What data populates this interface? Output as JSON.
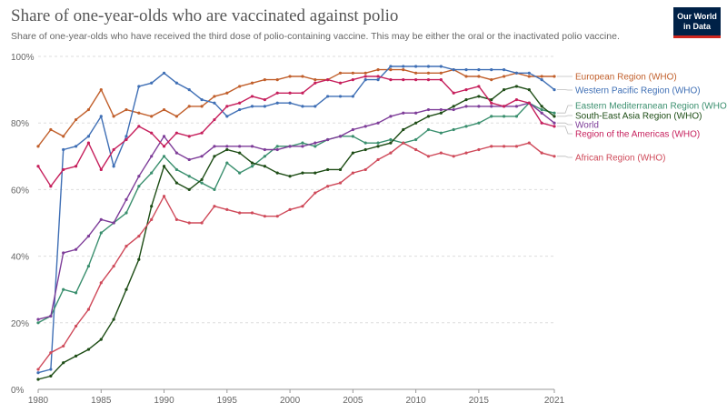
{
  "header": {
    "title": "Share of one-year-olds who are vaccinated against polio",
    "subtitle": "Share of one-year-olds who have received the third dose of polio-containing vaccine. This may be either the oral or the inactivated polio vaccine.",
    "logo_line1": "Our World",
    "logo_line2": "in Data"
  },
  "colors": {
    "grid": "#dddddd",
    "axis": "#666666",
    "logo_bg": "#002147",
    "logo_accent": "#ce261e"
  },
  "chart_data": {
    "type": "line",
    "x": [
      1980,
      1981,
      1982,
      1983,
      1984,
      1985,
      1986,
      1987,
      1988,
      1989,
      1990,
      1991,
      1992,
      1993,
      1994,
      1995,
      1996,
      1997,
      1998,
      1999,
      2000,
      2001,
      2002,
      2003,
      2004,
      2005,
      2006,
      2007,
      2008,
      2009,
      2010,
      2011,
      2012,
      2013,
      2014,
      2015,
      2016,
      2017,
      2018,
      2019,
      2020,
      2021
    ],
    "xlim": [
      1980,
      2021
    ],
    "ylim": [
      0,
      100
    ],
    "xticks": [
      1980,
      1985,
      1990,
      1995,
      2000,
      2005,
      2010,
      2015,
      2021
    ],
    "yticks": [
      0,
      20,
      40,
      60,
      80,
      100
    ],
    "ytick_labels": [
      "0%",
      "20%",
      "40%",
      "60%",
      "80%",
      "100%"
    ],
    "grid": true,
    "legend_position": "right",
    "series": [
      {
        "name": "European Region (WHO)",
        "color": "#c15f2b",
        "values": [
          73,
          78,
          76,
          81,
          84,
          90,
          82,
          84,
          83,
          82,
          84,
          82,
          85,
          85,
          88,
          89,
          91,
          92,
          93,
          93,
          94,
          94,
          93,
          93,
          95,
          95,
          95,
          96,
          96,
          96,
          95,
          95,
          95,
          96,
          94,
          94,
          93,
          94,
          95,
          94,
          94,
          94
        ]
      },
      {
        "name": "Western Pacific Region (WHO)",
        "color": "#3f6fb5",
        "values": [
          5,
          6,
          72,
          73,
          76,
          82,
          67,
          76,
          91,
          92,
          95,
          92,
          90,
          87,
          86,
          82,
          84,
          85,
          85,
          86,
          86,
          85,
          85,
          88,
          88,
          88,
          93,
          93,
          97,
          97,
          97,
          97,
          97,
          96,
          96,
          96,
          96,
          96,
          95,
          95,
          93,
          90
        ]
      },
      {
        "name": "Eastern Mediterranean Region (WHO)",
        "color": "#3a8f6e",
        "values": [
          20,
          22,
          30,
          29,
          37,
          47,
          50,
          53,
          61,
          65,
          70,
          66,
          64,
          62,
          60,
          68,
          65,
          67,
          70,
          73,
          73,
          74,
          73,
          75,
          76,
          76,
          74,
          74,
          75,
          74,
          75,
          78,
          77,
          78,
          79,
          80,
          82,
          82,
          82,
          86,
          84,
          83
        ]
      },
      {
        "name": "South-East Asia Region (WHO)",
        "color": "#1e4d16",
        "values": [
          3,
          4,
          8,
          10,
          12,
          15,
          21,
          30,
          39,
          55,
          67,
          62,
          60,
          63,
          70,
          72,
          71,
          68,
          67,
          65,
          64,
          65,
          65,
          66,
          66,
          71,
          72,
          73,
          74,
          78,
          80,
          82,
          83,
          85,
          87,
          88,
          87,
          90,
          91,
          90,
          85,
          82
        ]
      },
      {
        "name": "World",
        "color": "#7e3d99",
        "values": [
          21,
          22,
          41,
          42,
          46,
          51,
          50,
          57,
          64,
          70,
          76,
          71,
          69,
          70,
          73,
          73,
          73,
          73,
          72,
          72,
          73,
          73,
          74,
          75,
          76,
          78,
          79,
          80,
          82,
          83,
          83,
          84,
          84,
          84,
          85,
          85,
          85,
          85,
          85,
          86,
          83,
          80
        ]
      },
      {
        "name": "Region of the Americas (WHO)",
        "color": "#c61f5c",
        "values": [
          67,
          61,
          66,
          67,
          74,
          66,
          72,
          75,
          79,
          77,
          73,
          77,
          76,
          77,
          81,
          85,
          86,
          88,
          87,
          89,
          89,
          89,
          92,
          93,
          92,
          93,
          94,
          94,
          93,
          93,
          93,
          93,
          93,
          89,
          90,
          91,
          86,
          85,
          87,
          86,
          80,
          79
        ]
      },
      {
        "name": "African Region (WHO)",
        "color": "#cf4a5a",
        "values": [
          6,
          11,
          13,
          19,
          24,
          32,
          37,
          43,
          46,
          51,
          58,
          51,
          50,
          50,
          55,
          54,
          53,
          53,
          52,
          52,
          54,
          55,
          59,
          61,
          62,
          65,
          66,
          69,
          71,
          74,
          72,
          70,
          71,
          70,
          71,
          72,
          73,
          73,
          73,
          74,
          71,
          70
        ]
      }
    ]
  }
}
